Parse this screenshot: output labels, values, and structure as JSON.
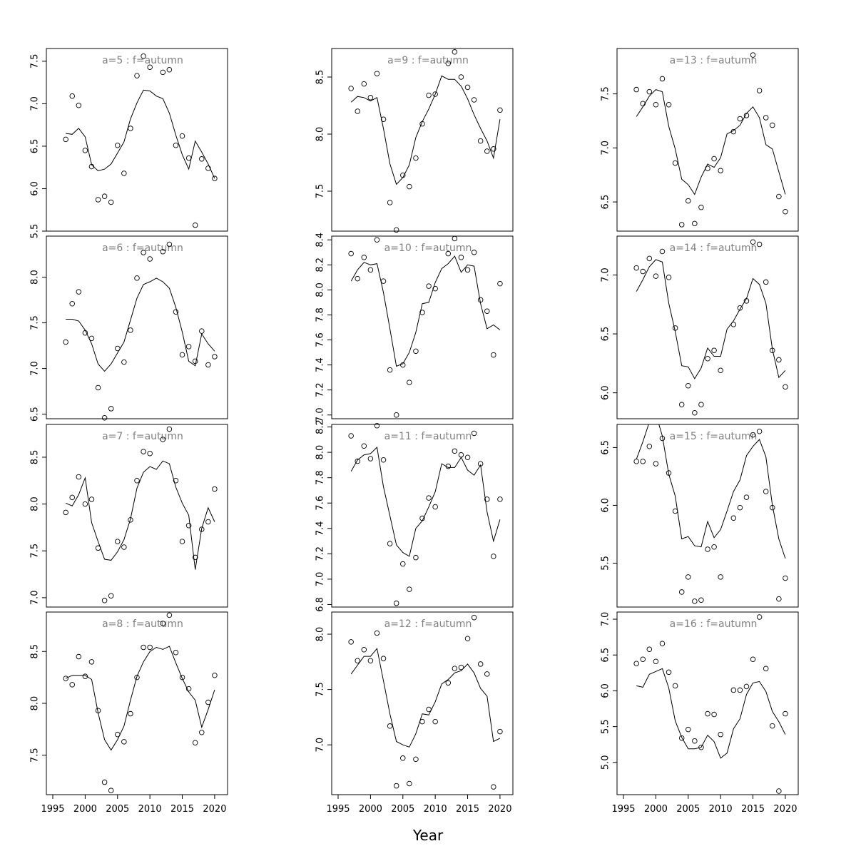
{
  "chart_data": {
    "type": "scatter",
    "layout": "small-multiples grid, 4 rows x 3 columns, column-major by age",
    "xlabel": "Year",
    "xlim": [
      1995,
      2021
    ],
    "xticks": [
      1995,
      2000,
      2005,
      2010,
      2015,
      2020
    ],
    "x": [
      1997,
      1998,
      1999,
      2000,
      2001,
      2002,
      2003,
      2004,
      2005,
      2006,
      2007,
      2008,
      2009,
      2010,
      2011,
      2012,
      2013,
      2014,
      2015,
      2016,
      2017,
      2018,
      2019,
      2020
    ],
    "panels": [
      {
        "title": "a=5  :  f=autumn",
        "ylim": [
          5.5,
          7.65
        ],
        "yticks": [
          "5.5",
          "6.0",
          "6.5",
          "7.0",
          "7.5"
        ],
        "observed": [
          6.58,
          7.09,
          6.98,
          6.45,
          6.26,
          5.87,
          5.91,
          5.84,
          6.51,
          6.18,
          6.71,
          7.33,
          7.56,
          7.43,
          null,
          7.37,
          7.4,
          6.51,
          6.62,
          6.36,
          5.57,
          6.35,
          6.24,
          6.12
        ],
        "fitted": [
          6.65,
          6.64,
          6.71,
          6.61,
          6.28,
          6.21,
          6.23,
          6.29,
          6.42,
          6.55,
          6.82,
          7.01,
          7.16,
          7.15,
          7.09,
          7.06,
          6.89,
          6.63,
          6.4,
          6.23,
          6.56,
          6.43,
          6.29,
          6.12
        ]
      },
      {
        "title": "a=6  :  f=autumn",
        "ylim": [
          6.45,
          8.45
        ],
        "yticks": [
          "6.5",
          "7.0",
          "7.5",
          "8.0"
        ],
        "observed": [
          7.29,
          7.71,
          7.84,
          7.39,
          7.33,
          6.79,
          6.46,
          6.56,
          7.22,
          7.07,
          7.42,
          7.99,
          8.27,
          8.2,
          null,
          8.28,
          8.36,
          7.62,
          7.15,
          7.24,
          7.08,
          7.41,
          7.04,
          7.13
        ],
        "fitted": [
          7.54,
          7.54,
          7.52,
          7.42,
          7.27,
          7.05,
          6.97,
          7.05,
          7.17,
          7.29,
          7.53,
          7.77,
          7.92,
          7.95,
          7.99,
          7.95,
          7.88,
          7.67,
          7.4,
          7.08,
          7.03,
          7.38,
          7.27,
          7.19
        ]
      },
      {
        "title": "a=7  :  f=autumn",
        "ylim": [
          6.9,
          8.85
        ],
        "yticks": [
          "7.0",
          "7.5",
          "8.0",
          "8.5"
        ],
        "observed": [
          7.91,
          8.07,
          8.29,
          8.0,
          8.05,
          7.53,
          6.97,
          7.02,
          7.6,
          7.54,
          7.83,
          8.25,
          8.56,
          8.54,
          null,
          8.69,
          8.8,
          8.25,
          7.6,
          7.77,
          7.43,
          7.73,
          7.81,
          8.16
        ],
        "fitted": [
          8.01,
          7.98,
          8.1,
          8.28,
          7.8,
          7.6,
          7.41,
          7.4,
          7.49,
          7.62,
          7.84,
          8.17,
          8.34,
          8.4,
          8.37,
          8.46,
          8.43,
          8.18,
          8.01,
          7.88,
          7.3,
          7.74,
          7.96,
          7.81
        ]
      },
      {
        "title": "a=8  :  f=autumn",
        "ylim": [
          7.12,
          8.88
        ],
        "yticks": [
          "7.5",
          "8.0",
          "8.5"
        ],
        "observed": [
          8.24,
          8.18,
          8.45,
          8.26,
          8.4,
          7.93,
          7.24,
          7.16,
          7.7,
          7.63,
          7.9,
          8.25,
          8.54,
          8.54,
          null,
          8.77,
          8.85,
          8.49,
          8.25,
          8.14,
          7.62,
          7.72,
          8.01,
          8.27
        ],
        "fitted": [
          8.24,
          8.27,
          8.27,
          8.27,
          8.23,
          7.91,
          7.65,
          7.55,
          7.65,
          7.78,
          8.03,
          8.26,
          8.4,
          8.5,
          8.54,
          8.52,
          8.55,
          8.39,
          8.24,
          8.11,
          8.03,
          7.77,
          7.94,
          8.13
        ]
      },
      {
        "title": "a=9  :  f=autumn",
        "ylim": [
          7.15,
          8.75
        ],
        "yticks": [
          "7.5",
          "8.0",
          "8.5"
        ],
        "observed": [
          8.4,
          8.2,
          8.44,
          8.32,
          8.53,
          8.13,
          7.4,
          7.16,
          7.64,
          7.54,
          7.79,
          8.09,
          8.34,
          8.35,
          null,
          8.62,
          8.72,
          8.5,
          8.41,
          8.3,
          7.94,
          7.85,
          7.87,
          8.21
        ],
        "fitted": [
          8.28,
          8.33,
          8.32,
          8.29,
          8.32,
          8.05,
          7.74,
          7.56,
          7.62,
          7.73,
          7.97,
          8.11,
          8.22,
          8.35,
          8.51,
          8.48,
          8.48,
          8.42,
          8.31,
          8.17,
          8.05,
          7.94,
          7.79,
          8.13
        ]
      },
      {
        "title": "a=10  :  f=autumn",
        "ylim": [
          6.97,
          8.43
        ],
        "yticks": [
          "7.0",
          "7.2",
          "7.4",
          "7.6",
          "7.8",
          "8.0",
          "8.2",
          "8.4"
        ],
        "observed": [
          8.29,
          8.09,
          8.26,
          8.16,
          8.4,
          8.07,
          7.36,
          7.0,
          7.4,
          7.26,
          7.51,
          7.82,
          8.03,
          8.01,
          null,
          8.29,
          8.41,
          8.26,
          8.16,
          8.3,
          7.92,
          7.83,
          7.48,
          8.05
        ],
        "fitted": [
          8.07,
          8.16,
          8.22,
          8.2,
          8.21,
          7.98,
          7.69,
          7.39,
          7.41,
          7.5,
          7.66,
          7.89,
          7.9,
          8.06,
          8.17,
          8.21,
          8.27,
          8.14,
          8.2,
          8.19,
          7.89,
          7.69,
          7.72,
          7.68
        ]
      },
      {
        "title": "a=11  :  f=autumn",
        "ylim": [
          6.78,
          8.22
        ],
        "yticks": [
          "6.8",
          "7.0",
          "7.2",
          "7.4",
          "7.6",
          "7.8",
          "8.0",
          "8.2"
        ],
        "observed": [
          8.13,
          7.93,
          8.05,
          7.95,
          8.21,
          7.94,
          7.28,
          6.81,
          7.12,
          6.92,
          7.17,
          7.48,
          7.64,
          7.57,
          null,
          7.89,
          8.01,
          7.98,
          7.96,
          8.15,
          7.91,
          7.63,
          7.18,
          7.63
        ],
        "fitted": [
          7.85,
          7.94,
          7.98,
          7.99,
          8.04,
          7.73,
          7.5,
          7.27,
          7.21,
          7.18,
          7.4,
          7.46,
          7.57,
          7.69,
          7.91,
          7.88,
          7.88,
          7.96,
          7.86,
          7.82,
          7.9,
          7.53,
          7.3,
          7.47
        ]
      },
      {
        "title": "a=12  :  f=autumn",
        "ylim": [
          6.55,
          8.2
        ],
        "yticks": [
          "7.0",
          "7.5",
          "8.0"
        ],
        "observed": [
          7.93,
          7.76,
          7.86,
          7.76,
          8.01,
          7.78,
          7.17,
          6.63,
          6.88,
          6.65,
          6.87,
          7.21,
          7.32,
          7.21,
          null,
          7.56,
          7.69,
          7.7,
          7.96,
          8.15,
          7.73,
          7.64,
          6.62,
          7.12
        ],
        "fitted": [
          7.64,
          7.72,
          7.8,
          7.8,
          7.87,
          7.58,
          7.28,
          7.03,
          7.0,
          6.98,
          7.1,
          7.28,
          7.27,
          7.39,
          7.55,
          7.59,
          7.65,
          7.67,
          7.73,
          7.65,
          7.51,
          7.44,
          7.03,
          7.06
        ]
      },
      {
        "title": "a=13  :  f=autumn",
        "ylim": [
          6.23,
          7.92
        ],
        "yticks": [
          "6.5",
          "7.0",
          "7.5"
        ],
        "observed": [
          7.54,
          7.41,
          7.52,
          7.4,
          7.64,
          7.4,
          6.86,
          6.29,
          6.51,
          6.3,
          6.45,
          6.81,
          6.9,
          6.79,
          null,
          7.15,
          7.27,
          7.3,
          7.86,
          7.53,
          7.28,
          7.21,
          6.55,
          6.41
        ],
        "fitted": [
          7.29,
          7.38,
          7.48,
          7.54,
          7.52,
          7.2,
          6.99,
          6.71,
          6.66,
          6.57,
          6.73,
          6.85,
          6.82,
          6.91,
          7.13,
          7.16,
          7.21,
          7.32,
          7.38,
          7.28,
          7.03,
          6.99,
          6.78,
          6.57
        ]
      },
      {
        "title": "a=14  :  f=autumn",
        "ylim": [
          5.78,
          7.33
        ],
        "yticks": [
          "6.0",
          "6.5",
          "7.0"
        ],
        "observed": [
          7.06,
          7.03,
          7.14,
          6.99,
          7.2,
          6.98,
          6.55,
          5.9,
          6.06,
          5.83,
          5.9,
          6.29,
          6.36,
          6.19,
          null,
          6.58,
          6.72,
          6.78,
          7.28,
          7.26,
          6.94,
          6.36,
          6.28,
          6.05
        ],
        "fitted": [
          6.86,
          6.96,
          7.07,
          7.13,
          7.11,
          6.76,
          6.52,
          6.23,
          6.22,
          6.12,
          6.21,
          6.38,
          6.31,
          6.31,
          6.54,
          6.61,
          6.71,
          6.8,
          6.97,
          6.92,
          6.76,
          6.37,
          6.13,
          6.19
        ]
      },
      {
        "title": "a=15  :  f=autumn",
        "ylim": [
          5.12,
          6.7
        ],
        "yticks": [
          "5.5",
          "6.0",
          "6.5"
        ],
        "observed": [
          6.38,
          6.38,
          6.51,
          6.36,
          6.58,
          6.28,
          5.95,
          5.25,
          5.38,
          5.17,
          5.18,
          5.62,
          5.64,
          5.38,
          null,
          5.89,
          5.98,
          6.07,
          6.61,
          6.64,
          6.12,
          5.98,
          5.19,
          5.37
        ],
        "fitted": [
          6.4,
          6.55,
          6.72,
          6.79,
          6.6,
          6.27,
          6.08,
          5.71,
          5.73,
          5.65,
          5.64,
          5.86,
          5.72,
          5.79,
          5.95,
          6.12,
          6.22,
          6.43,
          6.51,
          6.57,
          6.42,
          6.0,
          5.71,
          5.54
        ]
      },
      {
        "title": "a=16  :  f=autumn",
        "ylim": [
          4.55,
          7.1
        ],
        "yticks": [
          "5.0",
          "5.5",
          "6.0",
          "6.5",
          "7.0"
        ],
        "observed": [
          6.38,
          6.44,
          6.58,
          6.41,
          6.66,
          6.26,
          6.07,
          5.34,
          5.46,
          5.3,
          5.21,
          5.68,
          5.67,
          5.39,
          null,
          6.01,
          6.01,
          6.06,
          6.44,
          7.03,
          6.31,
          5.51,
          4.6,
          5.68
        ],
        "fitted": [
          6.07,
          6.05,
          6.23,
          6.27,
          6.31,
          6.04,
          5.58,
          5.35,
          5.19,
          5.19,
          5.21,
          5.38,
          5.29,
          5.06,
          5.13,
          5.47,
          5.61,
          5.95,
          6.11,
          6.13,
          5.99,
          5.71,
          5.57,
          5.39
        ]
      }
    ]
  }
}
